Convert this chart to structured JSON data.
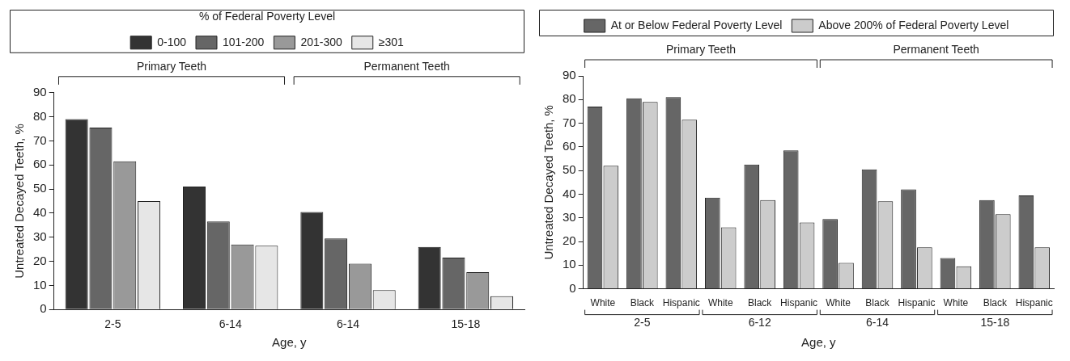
{
  "chart_data": [
    {
      "type": "bar",
      "categories": [
        "2-5",
        "6-14",
        "6-14",
        "15-18"
      ],
      "xlabel": "Age, y",
      "ylabel": "Untreated Decayed Teeth, %",
      "legend_title": "% of Federal Poverty Level",
      "legend": "top",
      "grid": false,
      "ylim": [
        0,
        90
      ],
      "yticks": [
        0,
        10,
        20,
        30,
        40,
        50,
        60,
        70,
        80,
        90
      ],
      "annotations": [
        "Primary Teeth",
        "Permanent Teeth"
      ],
      "series": [
        {
          "name": "0-100",
          "color": "#333333",
          "values": [
            79,
            51,
            40.5,
            26
          ]
        },
        {
          "name": "101-200",
          "color": "#666666",
          "values": [
            75.5,
            36.5,
            29.5,
            21.5
          ]
        },
        {
          "name": "201-300",
          "color": "#999999",
          "values": [
            61.5,
            27,
            19,
            15.5
          ]
        },
        {
          "name": "≥301",
          "color": "#e6e6e6",
          "values": [
            45,
            26.5,
            8,
            5.5
          ]
        }
      ]
    },
    {
      "type": "bar",
      "categories": [
        "White",
        "Black",
        "Hispanic",
        "White",
        "Black",
        "Hispanic",
        "White",
        "Black",
        "Hispanic",
        "White",
        "Black",
        "Hispanic"
      ],
      "xlabel": "Age, y",
      "ylabel": "Untreated Decayed Teeth, %",
      "legend": "top",
      "grid": false,
      "ylim": [
        0,
        90
      ],
      "yticks": [
        0,
        10,
        20,
        30,
        40,
        50,
        60,
        70,
        80,
        90
      ],
      "annotations": [
        "Primary Teeth",
        "Permanent Teeth",
        "2-5",
        "6-12",
        "6-14",
        "15-18"
      ],
      "series": [
        {
          "name": "At or Below Federal Poverty Level",
          "color": "#666666",
          "values": [
            77,
            80.5,
            81,
            38.5,
            52.5,
            58.5,
            29.5,
            50.5,
            42,
            13,
            37.5,
            39.5
          ]
        },
        {
          "name": "Above 200% of Federal Poverty Level",
          "color": "#cccccc",
          "values": [
            52,
            79,
            71.5,
            26,
            37.5,
            28,
            11,
            37,
            17.5,
            9.5,
            31.5,
            17.5
          ]
        }
      ]
    }
  ]
}
